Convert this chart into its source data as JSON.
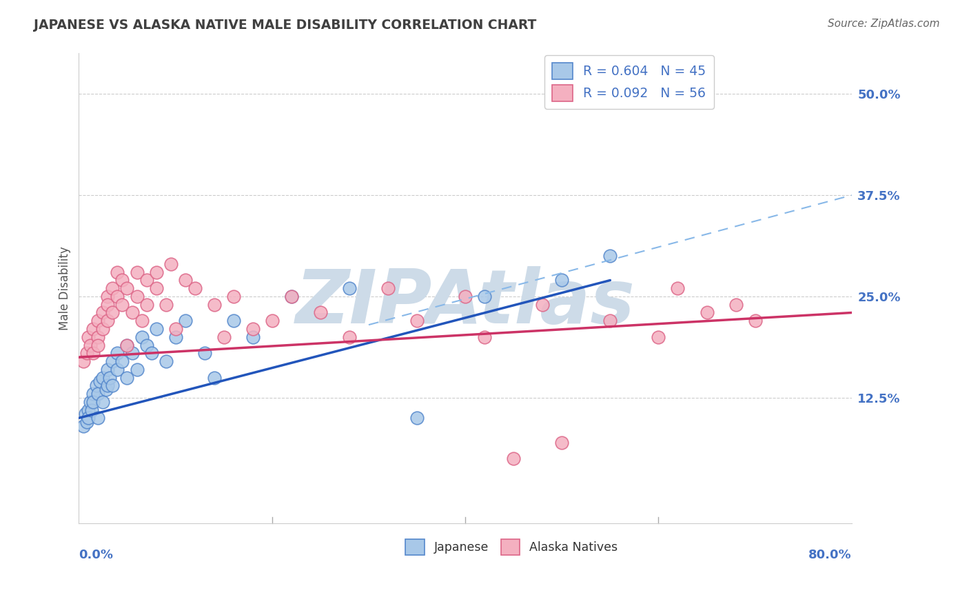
{
  "title": "JAPANESE VS ALASKA NATIVE MALE DISABILITY CORRELATION CHART",
  "source": "Source: ZipAtlas.com",
  "ylabel": "Male Disability",
  "xlim": [
    0.0,
    80.0
  ],
  "ylim": [
    -3.0,
    55.0
  ],
  "yticks": [
    12.5,
    25.0,
    37.5,
    50.0
  ],
  "axis_blue": "#4472c4",
  "japanese_color": "#a8c8e8",
  "japanese_edge": "#5588cc",
  "alaska_color": "#f4b0c0",
  "alaska_edge": "#dd6688",
  "trend_blue": "#2255bb",
  "trend_pink": "#cc3366",
  "trend_dashed": "#88b8e8",
  "watermark": "ZIPAtlas",
  "watermark_color": "#cddbe8",
  "title_color": "#404040",
  "source_color": "#666666",
  "grid_color": "#cccccc",
  "background": "#ffffff",
  "legend_top": [
    {
      "text": "R = 0.604   N = 45",
      "face": "#a8c8e8",
      "edge": "#5588cc"
    },
    {
      "text": "R = 0.092   N = 56",
      "face": "#f4b0c0",
      "edge": "#dd6688"
    }
  ],
  "legend_bottom_labels": [
    "Japanese",
    "Alaska Natives"
  ],
  "japanese_x": [
    0.5,
    0.7,
    0.8,
    1.0,
    1.0,
    1.2,
    1.3,
    1.5,
    1.5,
    1.8,
    2.0,
    2.0,
    2.2,
    2.5,
    2.5,
    2.8,
    3.0,
    3.0,
    3.2,
    3.5,
    3.5,
    4.0,
    4.0,
    4.5,
    5.0,
    5.0,
    5.5,
    6.0,
    6.5,
    7.0,
    7.5,
    8.0,
    9.0,
    10.0,
    11.0,
    13.0,
    14.0,
    16.0,
    18.0,
    22.0,
    28.0,
    35.0,
    42.0,
    50.0,
    55.0
  ],
  "japanese_y": [
    9.0,
    10.5,
    9.5,
    11.0,
    10.0,
    12.0,
    11.0,
    13.0,
    12.0,
    14.0,
    10.0,
    13.0,
    14.5,
    12.0,
    15.0,
    13.5,
    14.0,
    16.0,
    15.0,
    17.0,
    14.0,
    16.0,
    18.0,
    17.0,
    15.0,
    19.0,
    18.0,
    16.0,
    20.0,
    19.0,
    18.0,
    21.0,
    17.0,
    20.0,
    22.0,
    18.0,
    15.0,
    22.0,
    20.0,
    25.0,
    26.0,
    10.0,
    25.0,
    27.0,
    30.0
  ],
  "alaska_x": [
    0.5,
    0.8,
    1.0,
    1.2,
    1.5,
    1.5,
    2.0,
    2.0,
    2.0,
    2.5,
    2.5,
    3.0,
    3.0,
    3.0,
    3.5,
    3.5,
    4.0,
    4.0,
    4.5,
    4.5,
    5.0,
    5.0,
    5.5,
    6.0,
    6.0,
    6.5,
    7.0,
    7.0,
    8.0,
    8.0,
    9.0,
    9.5,
    10.0,
    11.0,
    12.0,
    14.0,
    15.0,
    16.0,
    18.0,
    20.0,
    22.0,
    25.0,
    28.0,
    32.0,
    35.0,
    40.0,
    42.0,
    45.0,
    48.0,
    50.0,
    55.0,
    60.0,
    62.0,
    65.0,
    68.0,
    70.0
  ],
  "alaska_y": [
    17.0,
    18.0,
    20.0,
    19.0,
    21.0,
    18.0,
    22.0,
    20.0,
    19.0,
    23.0,
    21.0,
    22.0,
    25.0,
    24.0,
    26.0,
    23.0,
    28.0,
    25.0,
    27.0,
    24.0,
    19.0,
    26.0,
    23.0,
    28.0,
    25.0,
    22.0,
    27.0,
    24.0,
    26.0,
    28.0,
    24.0,
    29.0,
    21.0,
    27.0,
    26.0,
    24.0,
    20.0,
    25.0,
    21.0,
    22.0,
    25.0,
    23.0,
    20.0,
    26.0,
    22.0,
    25.0,
    20.0,
    5.0,
    24.0,
    7.0,
    22.0,
    20.0,
    26.0,
    23.0,
    24.0,
    22.0
  ],
  "blue_line_x0": 0.0,
  "blue_line_y0": 10.0,
  "blue_line_x1": 55.0,
  "blue_line_y1": 27.0,
  "pink_line_x0": 0.0,
  "pink_line_y0": 17.5,
  "pink_line_x1": 80.0,
  "pink_line_y1": 23.0,
  "dashed_x0": 30.0,
  "dashed_y0": 21.5,
  "dashed_x1": 80.0,
  "dashed_y1": 37.5
}
